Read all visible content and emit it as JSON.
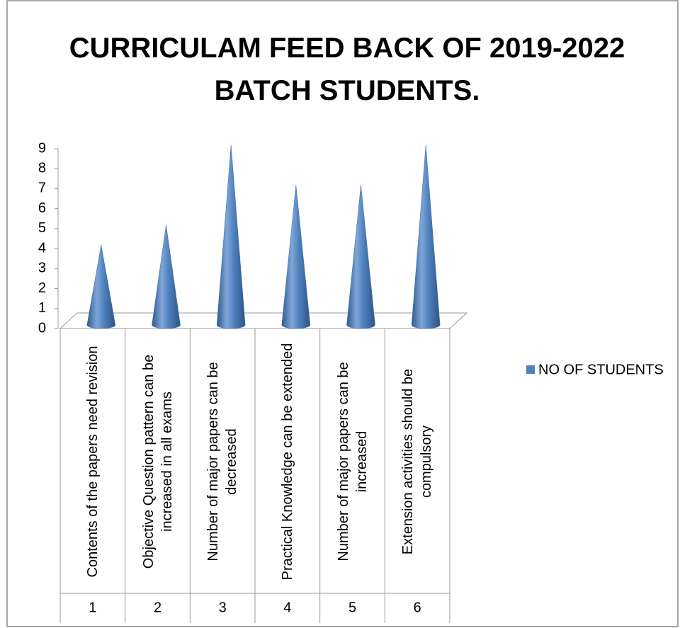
{
  "chart_data": {
    "type": "cone",
    "title": "CURRICULAM FEED BACK OF 2019-2022 BATCH STUDENTS.",
    "categories": [
      "Contents of the papers need revision",
      "Objective Question pattern can be increased in all exams",
      "Number of major papers can be decreased",
      "Practical Knowledge can be extended",
      "Number of major papers can be increased",
      "Extension activities should be compulsory"
    ],
    "category_numbers": [
      1,
      2,
      3,
      4,
      5,
      6
    ],
    "series": [
      {
        "name": "NO OF STUDENTS",
        "color": "#4f81bd",
        "values": [
          4,
          5,
          9,
          7,
          7,
          9
        ]
      }
    ],
    "ylim": [
      0,
      9
    ],
    "yticks": [
      0,
      1,
      2,
      3,
      4,
      5,
      6,
      7,
      8,
      9
    ],
    "legend": "right"
  }
}
